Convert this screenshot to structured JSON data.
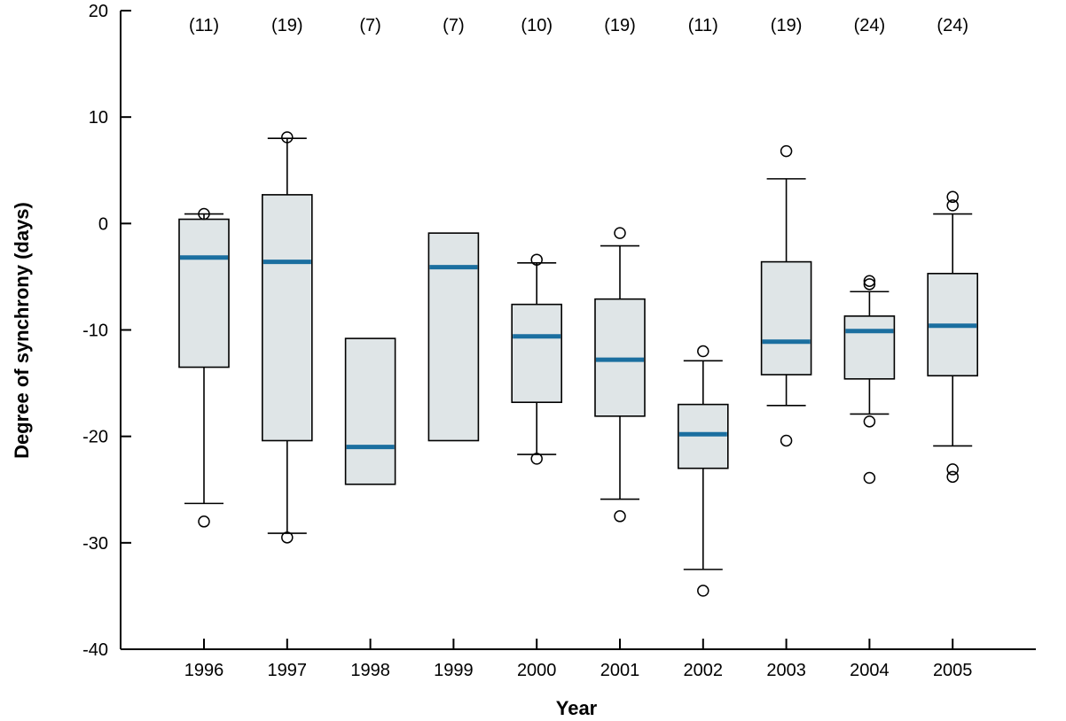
{
  "chart_data": {
    "type": "boxplot",
    "xlabel": "Year",
    "ylabel": "Degree of synchrony (days)",
    "ylim": [
      -40,
      20
    ],
    "yticks": [
      -40,
      -30,
      -20,
      -10,
      0,
      10,
      20
    ],
    "ytick_labels": [
      "-40",
      "-30",
      "-20",
      "-10",
      "0",
      "10",
      "20"
    ],
    "grid": false,
    "colors": {
      "box_fill": "#dfe5e7",
      "median": "#1b6fa0",
      "stroke": "#000000"
    },
    "boxes": [
      {
        "year": "1996",
        "n_label": "(11)",
        "q1": -13.5,
        "median": -3.2,
        "q3": 0.4,
        "whisker_low": -26.3,
        "whisker_high": 0.9,
        "outliers": [
          0.9,
          -28
        ]
      },
      {
        "year": "1997",
        "n_label": "(19)",
        "q1": -20.4,
        "median": -3.6,
        "q3": 2.7,
        "whisker_low": -29.1,
        "whisker_high": 8.0,
        "outliers": [
          8.1,
          -29.5
        ]
      },
      {
        "year": "1998",
        "n_label": "(7)",
        "q1": -24.5,
        "median": -21.0,
        "q3": -10.8,
        "whisker_low": null,
        "whisker_high": null,
        "outliers": []
      },
      {
        "year": "1999",
        "n_label": "(7)",
        "q1": -20.4,
        "median": -4.1,
        "q3": -0.9,
        "whisker_low": null,
        "whisker_high": null,
        "outliers": []
      },
      {
        "year": "2000",
        "n_label": "(10)",
        "q1": -16.8,
        "median": -10.6,
        "q3": -7.6,
        "whisker_low": -21.7,
        "whisker_high": -3.7,
        "outliers": [
          -3.4,
          -22.1
        ]
      },
      {
        "year": "2001",
        "n_label": "(19)",
        "q1": -18.1,
        "median": -12.8,
        "q3": -7.1,
        "whisker_low": -25.9,
        "whisker_high": -2.1,
        "outliers": [
          -0.9,
          -27.5
        ]
      },
      {
        "year": "2002",
        "n_label": "(11)",
        "q1": -23.0,
        "median": -19.8,
        "q3": -17.0,
        "whisker_low": -32.5,
        "whisker_high": -12.9,
        "outliers": [
          -12.0,
          -34.5
        ]
      },
      {
        "year": "2003",
        "n_label": "(19)",
        "q1": -14.2,
        "median": -11.1,
        "q3": -3.6,
        "whisker_low": -17.1,
        "whisker_high": 4.2,
        "outliers": [
          6.8,
          -20.4
        ]
      },
      {
        "year": "2004",
        "n_label": "(24)",
        "q1": -14.6,
        "median": -10.1,
        "q3": -8.7,
        "whisker_low": -17.9,
        "whisker_high": -6.4,
        "outliers": [
          -5.4,
          -5.7,
          -18.6,
          -23.9
        ]
      },
      {
        "year": "2005",
        "n_label": "(24)",
        "q1": -14.3,
        "median": -9.6,
        "q3": -4.7,
        "whisker_low": -20.9,
        "whisker_high": 0.9,
        "outliers": [
          2.5,
          1.7,
          -23.1,
          -23.8
        ]
      }
    ]
  }
}
